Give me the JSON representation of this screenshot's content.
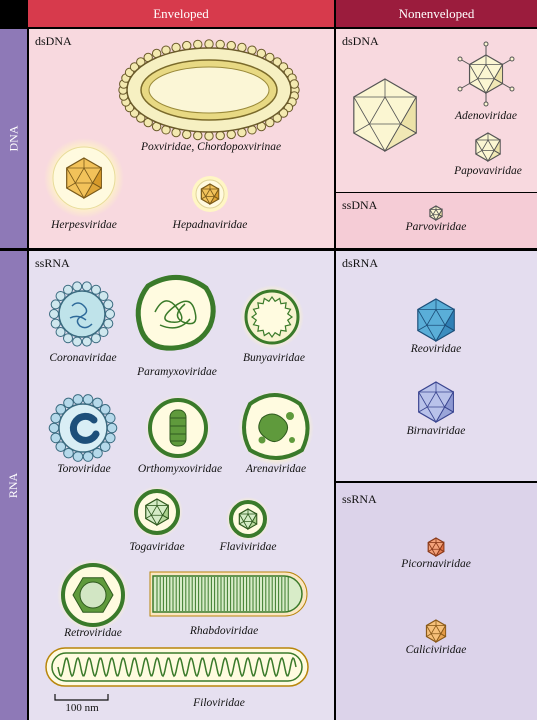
{
  "headers": {
    "enveloped": "Enveloped",
    "nonenveloped": "Nonenveloped"
  },
  "rows": {
    "dna": "DNA",
    "rna": "RNA"
  },
  "sections": {
    "env_dsdna": "dsDNA",
    "nonenv_dsdna": "dsDNA",
    "nonenv_ssdna": "ssDNA",
    "env_ssrna": "ssRNA",
    "nonenv_dsrna": "dsRNA",
    "nonenv_ssrna": "ssRNA"
  },
  "families": {
    "poxviridae": "Poxviridae, Chordopoxvirinae",
    "herpesviridae": "Herpesviridae",
    "hepadnaviridae": "Hepadnaviridae",
    "adenoviridae": "Adenoviridae",
    "papovaviridae": "Papovaviridae",
    "parvoviridae": "Parvoviridae",
    "coronaviridae": "Coronaviridae",
    "paramyxoviridae": "Paramyxoviridae",
    "bunyaviridae": "Bunyaviridae",
    "toroviridae": "Toroviridae",
    "orthomyxoviridae": "Orthomyxoviridae",
    "arenaviridae": "Arenaviridae",
    "togaviridae": "Togaviridae",
    "flaviviridae": "Flaviviridae",
    "retroviridae": "Retroviridae",
    "rhabdoviridae": "Rhabdoviridae",
    "filoviridae": "Filoviridae",
    "reoviridae": "Reoviridae",
    "birnaviridae": "Birnaviridae",
    "picornaviridae": "Picornaviridae",
    "caliciviridae": "Caliciviridae"
  },
  "scale_bar": "100 nm",
  "colors": {
    "enveloped_header": "#d73a4c",
    "nonenveloped_header": "#9b1c3d",
    "dna_side": "#8e79b7",
    "rna_side": "#8e79b7",
    "dna_panel": "#f8d9df",
    "rna_panel": "#e5def0"
  }
}
